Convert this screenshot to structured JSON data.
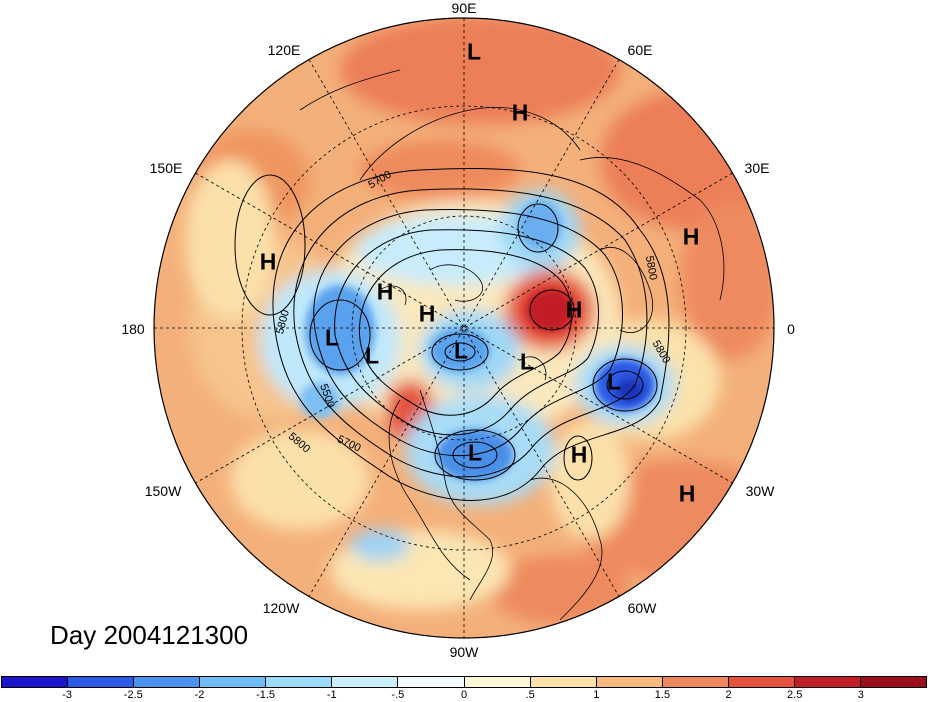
{
  "title": "Day 2004121300",
  "longitude_labels": [
    {
      "id": "90e",
      "text": "90E"
    },
    {
      "id": "60e",
      "text": "60E"
    },
    {
      "id": "30e",
      "text": "30E"
    },
    {
      "id": "0",
      "text": "0"
    },
    {
      "id": "30w",
      "text": "30W"
    },
    {
      "id": "60w",
      "text": "60W"
    },
    {
      "id": "90w",
      "text": "90W"
    },
    {
      "id": "120w",
      "text": "120W"
    },
    {
      "id": "150w",
      "text": "150W"
    },
    {
      "id": "180",
      "text": "180"
    },
    {
      "id": "150e",
      "text": "150E"
    },
    {
      "id": "120e",
      "text": "120E"
    }
  ],
  "pressure_centers": [
    {
      "type": "L",
      "text": "L"
    },
    {
      "type": "H",
      "text": "H"
    },
    {
      "type": "H",
      "text": "H"
    },
    {
      "type": "H",
      "text": "H"
    },
    {
      "type": "H",
      "text": "H"
    },
    {
      "type": "H",
      "text": "H"
    },
    {
      "type": "L",
      "text": "L"
    },
    {
      "type": "L",
      "text": "L"
    },
    {
      "type": "L",
      "text": "L"
    },
    {
      "type": "L",
      "text": "L"
    },
    {
      "type": "L",
      "text": "L"
    },
    {
      "type": "H",
      "text": "H"
    },
    {
      "type": "H",
      "text": "H"
    },
    {
      "type": "L",
      "text": "L"
    },
    {
      "type": "H",
      "text": "H"
    }
  ],
  "contour_labels": [
    {
      "text": "5700"
    },
    {
      "text": "5800"
    },
    {
      "text": "5800"
    },
    {
      "text": "5800"
    },
    {
      "text": "5500"
    },
    {
      "text": "5700"
    },
    {
      "text": "5800"
    }
  ],
  "colorbar": {
    "labels": [
      "-3",
      "-2.5",
      "-2",
      "-1.5",
      "-1",
      "-.5",
      "0",
      ".5",
      "1",
      "1.5",
      "2",
      "2.5",
      "3"
    ],
    "colors": [
      "#1c14c8",
      "#2a5ae6",
      "#4a92f0",
      "#6ebdf6",
      "#9adcfa",
      "#cbeefc",
      "#f3fbfe",
      "#fdf7d6",
      "#fbe2a8",
      "#f6ba80",
      "#ef8a5c",
      "#e4523e",
      "#c21e28",
      "#9a0e1e"
    ]
  },
  "colors": {
    "ocean_base": "#f6ba80",
    "land_lines": "#000000"
  }
}
